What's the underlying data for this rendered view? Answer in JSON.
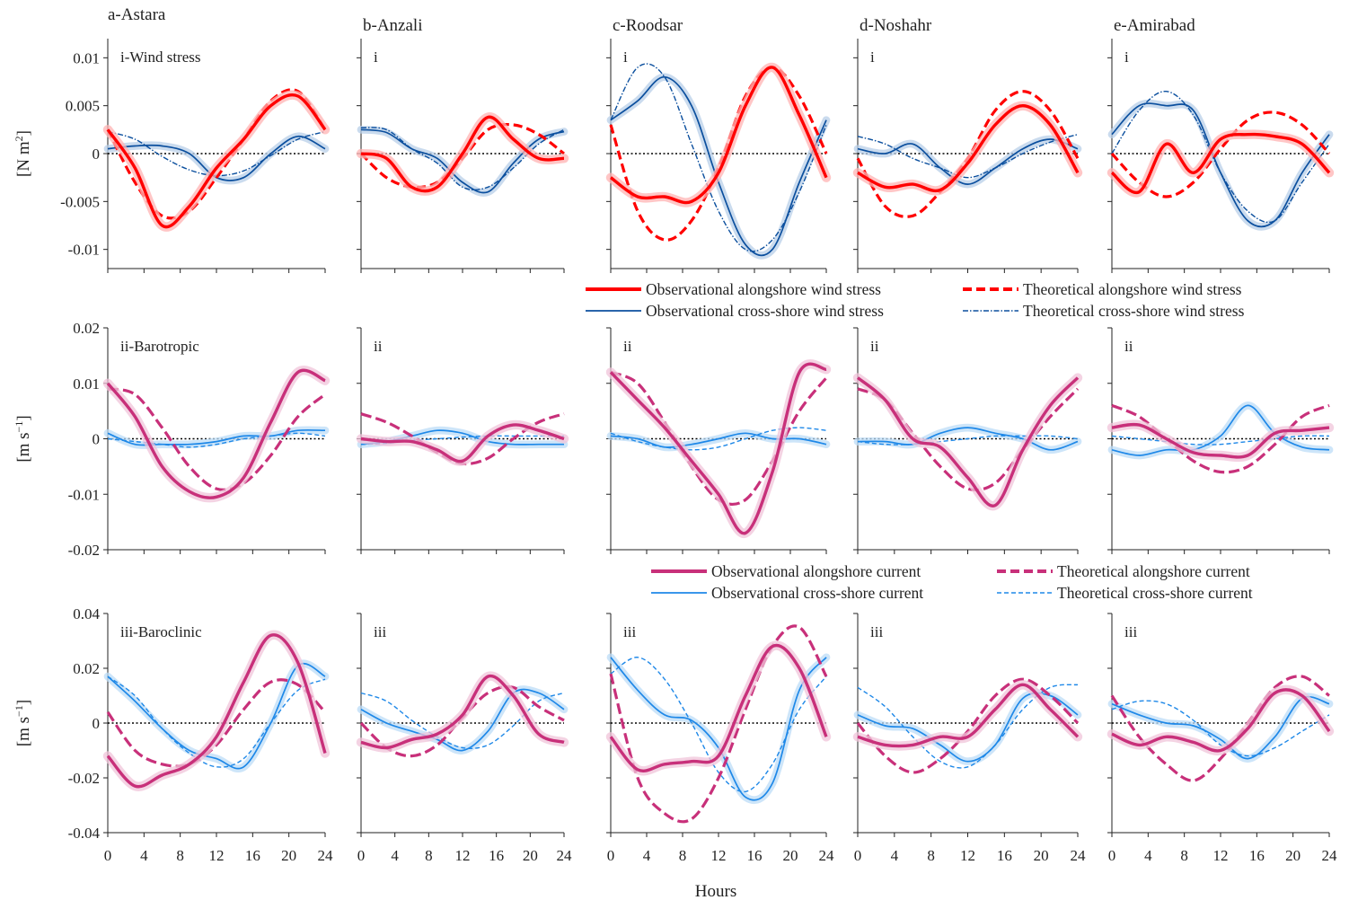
{
  "chart_data": {
    "type": "line",
    "xlabel": "Hours",
    "x": [
      0,
      3,
      6,
      9,
      12,
      15,
      18,
      21,
      24
    ],
    "xticks": [
      "0",
      "4",
      "8",
      "12",
      "16",
      "20",
      "24"
    ],
    "xlim": [
      0,
      24
    ],
    "stations": [
      "a-Astara",
      "b-Anzali",
      "c-Roodsar",
      "d-Noshahr",
      "e-Amirabad"
    ],
    "rows": [
      {
        "name": "Wind stress",
        "ylabel": "[N m²]",
        "ylabel_main": "[N m",
        "ylabel_sup": "2",
        "ylabel_end": "]",
        "value_scale": 0.001,
        "ylim": [
          -0.012,
          0.012
        ],
        "yticks": [
          0.01,
          0.005,
          0,
          -0.005,
          -0.01
        ],
        "ytick_labels": [
          "0.01",
          "0.005",
          "0",
          "-0.005",
          "-0.01"
        ],
        "panel_labels": [
          "i-Wind stress",
          "i",
          "i",
          "i",
          "i"
        ],
        "colors": {
          "along": "#ff0000",
          "cross": "#0b4f9e",
          "along_band": "#ffb3b3",
          "cross_band": "#b8cfe8"
        },
        "legend": {
          "obs_along": "Observational alongshore wind stress",
          "theo_along": "Theoretical alongshore wind stress",
          "obs_cross": "Observational cross-shore wind stress",
          "theo_cross": "Theoretical cross-shore wind stress"
        },
        "panels": [
          {
            "obs_along": [
              2.5,
              -1.5,
              -7.5,
              -5.5,
              -1.5,
              1.5,
              5,
              6,
              2.5
            ],
            "theo_along": [
              2.5,
              -3,
              -6.5,
              -6,
              -2.5,
              1.5,
              5.5,
              6.5,
              2.5
            ],
            "obs_cross": [
              0.5,
              0.8,
              0.8,
              0,
              -2.5,
              -2.5,
              0,
              1.8,
              0.5
            ],
            "theo_cross": [
              2.3,
              1.5,
              -0.3,
              -1.7,
              -2.3,
              -1.8,
              -0.2,
              1.5,
              2.3
            ]
          },
          {
            "obs_along": [
              0,
              -0.5,
              -3.5,
              -3.5,
              0,
              3.8,
              1.5,
              -0.5,
              -0.5
            ],
            "theo_along": [
              0,
              -2.5,
              -3.5,
              -3,
              -0.5,
              2.5,
              3,
              2,
              0
            ],
            "obs_cross": [
              2.5,
              2.2,
              0.5,
              -0.5,
              -3,
              -4,
              -1,
              1.5,
              2.3
            ],
            "theo_cross": [
              2.7,
              2.5,
              0.5,
              -1,
              -3.5,
              -3.5,
              -1.5,
              1,
              2.5
            ]
          },
          {
            "obs_along": [
              -2.5,
              -4.5,
              -4.5,
              -5,
              -2,
              5,
              9,
              4,
              -2.5
            ],
            "theo_along": [
              3,
              -6,
              -9,
              -7,
              -1.5,
              6,
              9,
              6,
              0
            ],
            "obs_cross": [
              3.5,
              5.5,
              8,
              5,
              -3,
              -9.5,
              -10,
              -3,
              3.5
            ],
            "theo_cross": [
              3.5,
              9,
              8,
              1,
              -6,
              -10,
              -9,
              -4,
              3
            ]
          },
          {
            "obs_along": [
              -2,
              -3.5,
              -3.2,
              -3.8,
              -1,
              3,
              5,
              3,
              -2
            ],
            "theo_along": [
              -0.5,
              -5.5,
              -6.5,
              -4,
              -0.5,
              4.5,
              6.5,
              4.5,
              -0.5
            ],
            "obs_cross": [
              0.5,
              0,
              1,
              -1.5,
              -3.2,
              -1.5,
              0.5,
              1.5,
              0.5
            ],
            "theo_cross": [
              1.8,
              1,
              -0.5,
              -1.5,
              -2.5,
              -1.5,
              0,
              1.2,
              2
            ]
          },
          {
            "obs_along": [
              -2,
              -4,
              1,
              -2,
              1.5,
              2,
              1.8,
              1,
              -2
            ],
            "theo_along": [
              0,
              -3,
              -4.5,
              -3,
              0.5,
              3.5,
              4.3,
              3,
              0
            ],
            "obs_cross": [
              2,
              5,
              5,
              4.5,
              -2,
              -7,
              -7,
              -2,
              2
            ],
            "theo_cross": [
              0,
              4.5,
              6.5,
              4,
              -2,
              -6,
              -7,
              -3,
              1
            ]
          }
        ]
      },
      {
        "name": "Barotropic",
        "ylabel": "[m s⁻¹]",
        "ylabel_main": "[m s",
        "ylabel_sup": "−1",
        "ylabel_end": "]",
        "value_scale": 0.001,
        "ylim": [
          -0.02,
          0.02
        ],
        "yticks": [
          0.02,
          0.01,
          0,
          -0.01,
          -0.02
        ],
        "ytick_labels": [
          "0.02",
          "0.01",
          "0",
          "-0.01",
          "-0.02"
        ],
        "panel_labels": [
          "ii-Barotropic",
          "ii",
          "ii",
          "ii",
          "ii"
        ],
        "colors": {
          "along": "#c8307a",
          "cross": "#1e88e8",
          "along_band": "#f0c4da",
          "cross_band": "#bcdcf7"
        },
        "legend": {
          "obs_along": "Observational alongshore current",
          "theo_along": "Theoretical alongshore current",
          "obs_cross": "Observational cross-shore current",
          "theo_cross": "Theoretical cross-shore current"
        },
        "panels": [
          {
            "obs_along": [
              10,
              4,
              -5,
              -9.5,
              -10.5,
              -7,
              3,
              12,
              10.5
            ],
            "theo_along": [
              9,
              8,
              2,
              -5,
              -9,
              -8,
              -3,
              4,
              8
            ],
            "obs_cross": [
              1,
              -1,
              -1,
              -1,
              -0.5,
              0.5,
              0.5,
              1.5,
              1.5
            ],
            "theo_cross": [
              0,
              -0.5,
              -1,
              -1.5,
              -1,
              0,
              0.5,
              1,
              0.5
            ]
          },
          {
            "obs_along": [
              0,
              -0.5,
              -0.5,
              -2,
              -4,
              0.5,
              2.5,
              1.5,
              0
            ],
            "theo_along": [
              4.5,
              3,
              0.5,
              -2.5,
              -4.5,
              -3.5,
              0,
              3,
              4.5
            ],
            "obs_cross": [
              -1,
              -0.5,
              0.5,
              1.5,
              1,
              -0.5,
              -1,
              -1,
              -1
            ],
            "theo_cross": [
              -1,
              -0.8,
              -0.3,
              0,
              0.3,
              0.5,
              0.5,
              0.5,
              0.5
            ]
          },
          {
            "obs_along": [
              12,
              7,
              2,
              -4,
              -10,
              -17,
              -6,
              12,
              12.5
            ],
            "theo_along": [
              12,
              10,
              3,
              -5,
              -11,
              -11,
              -4,
              5,
              11
            ],
            "obs_cross": [
              0.5,
              0,
              -1.5,
              -1,
              0,
              1,
              0,
              0,
              -1
            ],
            "theo_cross": [
              1,
              -0.5,
              -1.5,
              -2,
              -1.5,
              0,
              1.5,
              2,
              1.5
            ]
          },
          {
            "obs_along": [
              11,
              7,
              0,
              -1.5,
              -7,
              -12,
              -2,
              6,
              11
            ],
            "theo_along": [
              9,
              7,
              1,
              -5,
              -9,
              -8,
              -2,
              4,
              9
            ],
            "obs_cross": [
              -0.5,
              -0.5,
              -1,
              1,
              2,
              1,
              0,
              -2,
              -0.5
            ],
            "theo_cross": [
              -0.5,
              -1,
              -1,
              -0.5,
              0,
              0.5,
              0.5,
              0.5,
              0
            ]
          },
          {
            "obs_along": [
              2,
              2.5,
              0,
              -2.5,
              -3,
              -3,
              1,
              1.5,
              2
            ],
            "theo_along": [
              6,
              4,
              0,
              -4,
              -6,
              -5,
              -1,
              4,
              6
            ],
            "obs_cross": [
              -2,
              -3,
              -2,
              -2,
              0.5,
              6,
              1,
              -1.5,
              -2
            ],
            "theo_cross": [
              0.5,
              0,
              -0.5,
              -1,
              -1,
              -0.5,
              0,
              0.5,
              0.5
            ]
          }
        ]
      },
      {
        "name": "Baroclinic",
        "ylabel": "[m s⁻¹]",
        "ylabel_main": "[m s",
        "ylabel_sup": "−1",
        "ylabel_end": "]",
        "value_scale": 0.001,
        "ylim": [
          -0.04,
          0.04
        ],
        "yticks": [
          0.04,
          0.02,
          0,
          -0.02,
          -0.04
        ],
        "ytick_labels": [
          "0.04",
          "0.02",
          "0",
          "-0.02",
          "-0.04"
        ],
        "panel_labels": [
          "iii-Baroclinic",
          "iii",
          "iii",
          "iii",
          "iii"
        ],
        "colors": {
          "along": "#c8307a",
          "cross": "#1e88e8",
          "along_band": "#f0c4da",
          "cross_band": "#bcdcf7"
        },
        "panels": [
          {
            "obs_along": [
              -12,
              -23,
              -19,
              -15,
              -5,
              15,
              32,
              22,
              -11
            ],
            "theo_along": [
              4,
              -10,
              -15,
              -15,
              -8,
              5,
              15,
              14,
              4
            ],
            "obs_cross": [
              17,
              8,
              -2,
              -10,
              -13,
              -16,
              0,
              21,
              17
            ],
            "theo_cross": [
              17,
              10,
              -2,
              -11,
              -16,
              -13,
              0,
              12,
              16
            ]
          },
          {
            "obs_along": [
              -7,
              -9,
              -6,
              -4,
              3,
              17,
              10,
              -4,
              -7
            ],
            "theo_along": [
              0,
              -9,
              -12,
              -8,
              2,
              11,
              13,
              6,
              1
            ],
            "obs_cross": [
              5,
              0,
              -3,
              -6,
              -10,
              -3,
              11,
              11,
              5
            ],
            "theo_cross": [
              11,
              8,
              1,
              -5,
              -9,
              -8,
              -1,
              8,
              11
            ]
          },
          {
            "obs_along": [
              -5,
              -17,
              -15,
              -14,
              -12,
              10,
              28,
              20,
              -5
            ],
            "theo_along": [
              18,
              -20,
              -33,
              -35,
              -20,
              5,
              28,
              35,
              17
            ],
            "obs_cross": [
              24,
              12,
              3,
              1,
              -9,
              -27,
              -22,
              12,
              24
            ],
            "theo_cross": [
              18,
              24,
              16,
              0,
              -18,
              -25,
              -15,
              5,
              17
            ]
          },
          {
            "obs_along": [
              -5,
              -8,
              -8,
              -5,
              -5,
              5,
              14,
              5,
              -5
            ],
            "theo_along": [
              0,
              -12,
              -18,
              -13,
              -3,
              10,
              16,
              10,
              0
            ],
            "obs_cross": [
              3,
              -1,
              -2,
              -8,
              -14,
              -8,
              9,
              10,
              3
            ],
            "theo_cross": [
              13,
              6,
              -5,
              -14,
              -16,
              -8,
              5,
              13,
              14
            ]
          },
          {
            "obs_along": [
              -4,
              -8,
              -5,
              -7,
              -10,
              -2,
              11,
              10,
              -3
            ],
            "theo_along": [
              10,
              -5,
              -15,
              -21,
              -13,
              0,
              13,
              17,
              10
            ],
            "obs_cross": [
              7,
              3,
              0,
              -1,
              -6,
              -13,
              -5,
              9,
              7
            ],
            "theo_cross": [
              5,
              8,
              7,
              1,
              -8,
              -12,
              -9,
              -3,
              3
            ]
          }
        ]
      }
    ]
  }
}
